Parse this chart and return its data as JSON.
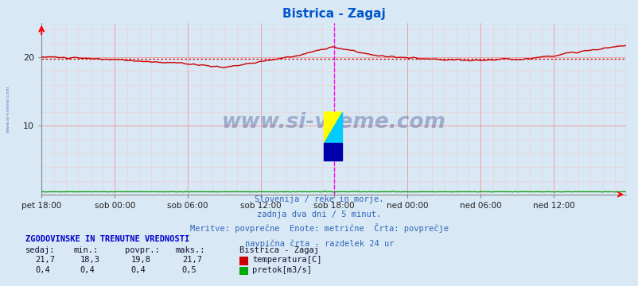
{
  "title": "Bistrica - Zagaj",
  "title_color": "#0055cc",
  "bg_color": "#d8e8f4",
  "plot_bg_color": "#d8e8f4",
  "grid_major_color": "#ee9999",
  "grid_minor_color": "#f4cccc",
  "ylim": [
    0,
    25
  ],
  "yticks": [
    10,
    20
  ],
  "n_points": 576,
  "tick_positions": [
    0,
    72,
    144,
    216,
    288,
    360,
    432,
    504,
    575
  ],
  "xlabel_ticks": [
    "pet 18:00",
    "sob 00:00",
    "sob 06:00",
    "sob 12:00",
    "sob 18:00",
    "ned 00:00",
    "ned 06:00",
    "ned 12:00"
  ],
  "xlabel_tick_positions": [
    0,
    72,
    144,
    216,
    288,
    360,
    432,
    504
  ],
  "temp_avg": 19.8,
  "temp_line_color": "#cc0000",
  "flow_line_color": "#009900",
  "avg_line_color": "#cc0000",
  "vline_color": "#ff00ff",
  "watermark": "www.si-vreme.com",
  "watermark_color": "#334488",
  "watermark_alpha": 0.35,
  "sidebar_text": "www.si-vreme.com",
  "sidebar_color": "#4466aa",
  "subtitle1": "Slovenija / reke in morje.",
  "subtitle2": "zadnja dva dni / 5 minut.",
  "subtitle3": "Meritve: povprečne  Enote: metrične  Črta: povprečje",
  "subtitle4": "navpična črta - razdelek 24 ur",
  "subtitle_color": "#3366bb",
  "footer_header": "ZGODOVINSKE IN TRENUTNE VREDNOSTI",
  "footer_header_color": "#0000cc",
  "footer_col_headers": [
    "sedaj:",
    "min.:",
    "povpr.:",
    "maks.:",
    "Bistrica - Zagaj"
  ],
  "footer_temp_vals": [
    "21,7",
    "18,3",
    "19,8",
    "21,7"
  ],
  "footer_flow_vals": [
    "0,4",
    "0,4",
    "0,4",
    "0,5"
  ],
  "footer_color": "#111133",
  "legend_temp": "temperatura[C]",
  "legend_flow": "pretok[m3/s]",
  "legend_temp_color": "#cc0000",
  "legend_flow_color": "#00aa00",
  "logo_yellow": "#ffff00",
  "logo_cyan": "#00ccff",
  "logo_blue": "#0000aa"
}
